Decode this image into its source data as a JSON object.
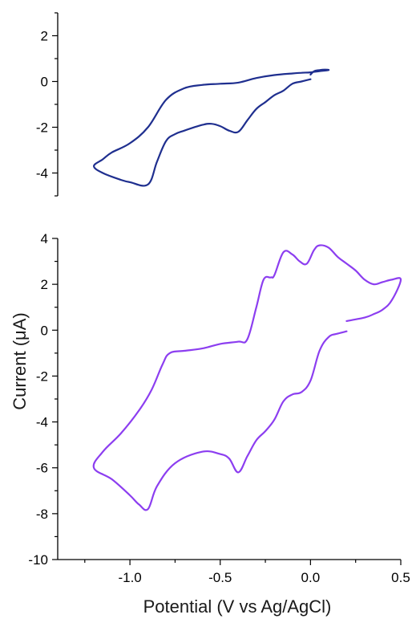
{
  "chart_data": [
    {
      "type": "line",
      "title": "",
      "xlabel": "",
      "ylabel": "",
      "xlim": [
        -1.4,
        0.5
      ],
      "ylim": [
        -5,
        3
      ],
      "yticks": [
        -4,
        -2,
        0,
        2
      ],
      "ytick_labels": [
        "-4",
        "-2",
        "0",
        "2"
      ],
      "show_x_axis": false,
      "grid": false,
      "series": [
        {
          "color": "#1f2f8f",
          "x": [
            0.0,
            0.02,
            0.05,
            0.08,
            0.1,
            0.05,
            0.0,
            -0.05,
            -0.1,
            -0.2,
            -0.3,
            -0.4,
            -0.5,
            -0.6,
            -0.7,
            -0.8,
            -0.9,
            -1.0,
            -1.1,
            -1.15,
            -1.2,
            -1.15,
            -1.05,
            -1.0,
            -0.9,
            -0.85,
            -0.8,
            -0.75,
            -0.7,
            -0.6,
            -0.55,
            -0.5,
            -0.45,
            -0.4,
            -0.35,
            -0.3,
            -0.25,
            -0.2,
            -0.15,
            -0.1,
            -0.05,
            0.0
          ],
          "y": [
            0.3,
            0.45,
            0.5,
            0.52,
            0.5,
            0.45,
            0.4,
            0.38,
            0.35,
            0.28,
            0.15,
            -0.05,
            -0.1,
            -0.15,
            -0.3,
            -0.8,
            -2.0,
            -2.7,
            -3.1,
            -3.4,
            -3.7,
            -4.0,
            -4.3,
            -4.4,
            -4.5,
            -3.5,
            -2.6,
            -2.3,
            -2.15,
            -1.9,
            -1.85,
            -1.95,
            -2.15,
            -2.2,
            -1.7,
            -1.2,
            -0.9,
            -0.6,
            -0.4,
            -0.1,
            0.0,
            0.1
          ]
        }
      ]
    },
    {
      "type": "line",
      "title": "",
      "xlabel": "Potential (V vs Ag/AgCl)",
      "ylabel": "Current (μA)",
      "xlim": [
        -1.4,
        0.5
      ],
      "ylim": [
        -10,
        4
      ],
      "xticks": [
        -1.0,
        -0.5,
        0.0,
        0.5
      ],
      "xtick_labels": [
        "-1.0",
        "-0.5",
        "0.0",
        "0.5"
      ],
      "yticks": [
        -10,
        -8,
        -6,
        -4,
        -2,
        0,
        2,
        4
      ],
      "ytick_labels": [
        "-10",
        "-8",
        "-6",
        "-4",
        "-2",
        "0",
        "2",
        "4"
      ],
      "grid": false,
      "series": [
        {
          "color": "#8c3ef0",
          "x": [
            0.2,
            0.3,
            0.35,
            0.4,
            0.45,
            0.5,
            0.45,
            0.4,
            0.35,
            0.3,
            0.25,
            0.2,
            0.15,
            0.1,
            0.05,
            0.02,
            -0.02,
            -0.06,
            -0.1,
            -0.15,
            -0.2,
            -0.22,
            -0.26,
            -0.3,
            -0.35,
            -0.4,
            -0.5,
            -0.6,
            -0.7,
            -0.78,
            -0.82,
            -0.88,
            -0.95,
            -1.05,
            -1.15,
            -1.2,
            -1.1,
            -1.0,
            -0.95,
            -0.9,
            -0.85,
            -0.75,
            -0.6,
            -0.5,
            -0.45,
            -0.4,
            -0.35,
            -0.3,
            -0.25,
            -0.2,
            -0.15,
            -0.1,
            -0.05,
            0.0,
            0.05,
            0.1,
            0.15,
            0.2
          ],
          "y": [
            0.4,
            0.55,
            0.7,
            0.9,
            1.3,
            2.2,
            2.2,
            2.1,
            2.0,
            2.2,
            2.6,
            2.9,
            3.2,
            3.6,
            3.7,
            3.5,
            2.9,
            3.0,
            3.3,
            3.4,
            2.4,
            2.3,
            2.2,
            1.0,
            -0.4,
            -0.5,
            -0.6,
            -0.8,
            -0.9,
            -1.0,
            -1.5,
            -2.6,
            -3.5,
            -4.5,
            -5.3,
            -6.0,
            -6.5,
            -7.2,
            -7.6,
            -7.8,
            -6.8,
            -5.8,
            -5.3,
            -5.4,
            -5.6,
            -6.2,
            -5.5,
            -4.8,
            -4.4,
            -3.9,
            -3.1,
            -2.8,
            -2.7,
            -2.2,
            -0.9,
            -0.3,
            -0.15,
            -0.05
          ]
        }
      ]
    }
  ]
}
